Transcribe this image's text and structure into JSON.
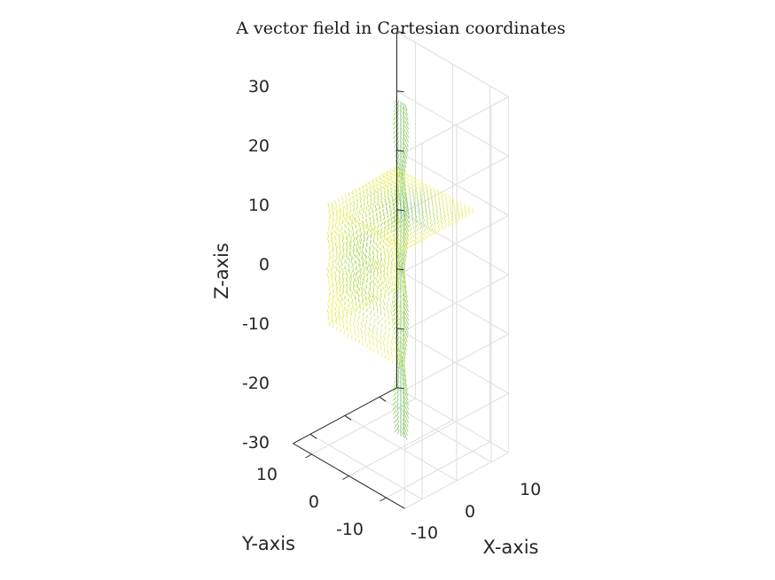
{
  "chart_data": {
    "type": "quiver3d",
    "title": "A vector field in Cartesian coordinates",
    "xlabel": "X-axis",
    "ylabel": "Y-axis",
    "zlabel": "Z-axis",
    "xlim": [
      -15,
      15
    ],
    "ylim": [
      -15,
      15
    ],
    "zlim": [
      -30,
      30
    ],
    "x_ticks": [
      "-10",
      "0",
      "10"
    ],
    "y_ticks": [
      "10",
      "0",
      "-10"
    ],
    "z_ticks": [
      "30",
      "20",
      "10",
      "0",
      "-10",
      "-20",
      "-30"
    ],
    "grid": true,
    "cube": {
      "x_range": [
        -10,
        10
      ],
      "y_range": [
        -10,
        10
      ],
      "z_range": [
        -10,
        10
      ]
    },
    "column": {
      "x": 0,
      "y": 0,
      "z_range": [
        -30,
        30
      ]
    },
    "colors": {
      "inner": "#4daf62",
      "mid": "#a6d45e",
      "outer": "#f5f466"
    }
  }
}
